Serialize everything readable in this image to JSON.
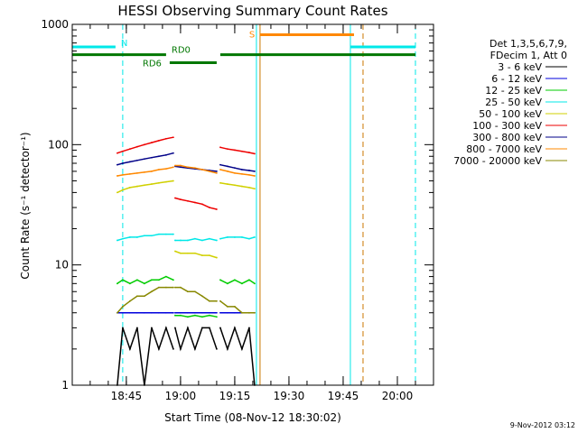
{
  "chart_data": {
    "type": "line",
    "title": "HESSI Observing Summary Count Rates",
    "xlabel": "Start Time (08-Nov-12 18:30:02)",
    "ylabel": "Count Rate (s⁻¹ detector⁻¹)",
    "y_scale": "log",
    "ylim": [
      1,
      1000
    ],
    "xlim": [
      "18:30:02",
      "20:10:00"
    ],
    "x_ticks": [
      "18:45",
      "19:00",
      "19:15",
      "19:30",
      "19:45",
      "20:00"
    ],
    "y_ticks": [
      "1",
      "10",
      "100",
      "1000"
    ],
    "legend_position": "right",
    "legend_header": [
      "Det 1,3,5,6,7,9,",
      "FDecim 1, Att 0"
    ],
    "series": [
      {
        "name": "3 - 6 keV",
        "color": "#000000",
        "segments": [
          {
            "x": [
              "18:42:30",
              "18:44:00",
              "18:46:00",
              "18:48:00",
              "18:50:00",
              "18:52:00",
              "18:54:00",
              "18:56:00",
              "18:58:00"
            ],
            "y": [
              1,
              3,
              2,
              3,
              1,
              3,
              2,
              3,
              2
            ]
          },
          {
            "x": [
              "18:58:30",
              "19:00:00",
              "19:02:00",
              "19:04:00",
              "19:06:00",
              "19:08:00",
              "19:10:00"
            ],
            "y": [
              3,
              2,
              3,
              2,
              3,
              3,
              2
            ]
          },
          {
            "x": [
              "19:11:00",
              "19:13:00",
              "19:15:00",
              "19:17:00",
              "19:19:00",
              "19:20:30"
            ],
            "y": [
              3,
              2,
              3,
              2,
              3,
              1
            ]
          }
        ]
      },
      {
        "name": "6 - 12 keV",
        "color": "#0000dd",
        "segments": [
          {
            "x": [
              "18:42:30",
              "18:44:00",
              "18:46:00",
              "18:48:00",
              "18:50:00",
              "18:52:00",
              "18:54:00",
              "18:56:00",
              "18:58:00"
            ],
            "y": [
              4,
              4,
              4,
              4,
              4,
              4,
              4,
              4,
              4
            ]
          },
          {
            "x": [
              "18:58:30",
              "19:00:00",
              "19:02:00",
              "19:04:00",
              "19:06:00",
              "19:08:00",
              "19:10:00"
            ],
            "y": [
              4,
              4,
              4,
              4,
              4,
              4,
              4
            ]
          },
          {
            "x": [
              "19:11:00",
              "19:13:00",
              "19:15:00",
              "19:17:00",
              "19:19:00",
              "19:20:30"
            ],
            "y": [
              4,
              4,
              4,
              4,
              4,
              4
            ]
          }
        ]
      },
      {
        "name": "12 - 25 keV",
        "color": "#00cc00",
        "segments": [
          {
            "x": [
              "18:42:30",
              "18:44:00",
              "18:46:00",
              "18:48:00",
              "18:50:00",
              "18:52:00",
              "18:54:00",
              "18:56:00",
              "18:58:00"
            ],
            "y": [
              7,
              7.5,
              7,
              7.5,
              7,
              7.5,
              7.5,
              8,
              7.5
            ]
          },
          {
            "x": [
              "18:58:30",
              "19:00:00",
              "19:02:00",
              "19:04:00",
              "19:06:00",
              "19:08:00",
              "19:10:00"
            ],
            "y": [
              3.8,
              3.8,
              3.7,
              3.8,
              3.7,
              3.8,
              3.7
            ]
          },
          {
            "x": [
              "19:11:00",
              "19:13:00",
              "19:15:00",
              "19:17:00",
              "19:19:00",
              "19:20:30"
            ],
            "y": [
              7.5,
              7,
              7.5,
              7,
              7.5,
              7
            ]
          }
        ]
      },
      {
        "name": "25 - 50 keV",
        "color": "#00e8e8",
        "segments": [
          {
            "x": [
              "18:42:30",
              "18:44:00",
              "18:46:00",
              "18:48:00",
              "18:50:00",
              "18:52:00",
              "18:54:00",
              "18:56:00",
              "18:58:00"
            ],
            "y": [
              16,
              16.5,
              17,
              17,
              17.5,
              17.5,
              18,
              18,
              18
            ]
          },
          {
            "x": [
              "18:58:30",
              "19:00:00",
              "19:02:00",
              "19:04:00",
              "19:06:00",
              "19:08:00",
              "19:10:00"
            ],
            "y": [
              16,
              16,
              16,
              16.5,
              16,
              16.5,
              16
            ]
          },
          {
            "x": [
              "19:11:00",
              "19:13:00",
              "19:15:00",
              "19:17:00",
              "19:19:00",
              "19:20:30"
            ],
            "y": [
              16.5,
              17,
              17,
              17,
              16.5,
              17
            ]
          }
        ]
      },
      {
        "name": "50 - 100 keV",
        "color": "#d0d000",
        "segments": [
          {
            "x": [
              "18:42:30",
              "18:44:00",
              "18:46:00",
              "18:48:00",
              "18:50:00",
              "18:52:00",
              "18:54:00",
              "18:56:00",
              "18:58:00"
            ],
            "y": [
              40,
              42,
              44,
              45,
              46,
              47,
              48,
              49,
              50
            ]
          },
          {
            "x": [
              "18:58:30",
              "19:00:00",
              "19:02:00",
              "19:04:00",
              "19:06:00",
              "19:08:00",
              "19:10:00"
            ],
            "y": [
              13,
              12.5,
              12.5,
              12.5,
              12,
              12,
              11.5
            ]
          },
          {
            "x": [
              "19:11:00",
              "19:13:00",
              "19:15:00",
              "19:17:00",
              "19:19:00",
              "19:20:30"
            ],
            "y": [
              48,
              47,
              46,
              45,
              44,
              43
            ]
          }
        ]
      },
      {
        "name": "100 - 300 keV",
        "color": "#ee0000",
        "segments": [
          {
            "x": [
              "18:42:30",
              "18:44:00",
              "18:46:00",
              "18:48:00",
              "18:50:00",
              "18:52:00",
              "18:54:00",
              "18:56:00",
              "18:58:00"
            ],
            "y": [
              85,
              88,
              92,
              96,
              100,
              104,
              108,
              112,
              115
            ]
          },
          {
            "x": [
              "18:58:30",
              "19:00:00",
              "19:02:00",
              "19:04:00",
              "19:06:00",
              "19:08:00",
              "19:10:00"
            ],
            "y": [
              36,
              35,
              34,
              33,
              32,
              30,
              29
            ]
          },
          {
            "x": [
              "19:11:00",
              "19:13:00",
              "19:15:00",
              "19:17:00",
              "19:19:00",
              "19:20:30"
            ],
            "y": [
              95,
              92,
              90,
              88,
              86,
              84
            ]
          }
        ]
      },
      {
        "name": "300 - 800 keV",
        "color": "#000088",
        "segments": [
          {
            "x": [
              "18:42:30",
              "18:44:00",
              "18:46:00",
              "18:48:00",
              "18:50:00",
              "18:52:00",
              "18:54:00",
              "18:56:00",
              "18:58:00"
            ],
            "y": [
              68,
              70,
              72,
              74,
              76,
              78,
              80,
              82,
              85
            ]
          },
          {
            "x": [
              "18:58:30",
              "19:00:00",
              "19:02:00",
              "19:04:00",
              "19:06:00",
              "19:08:00",
              "19:10:00"
            ],
            "y": [
              66,
              65,
              64,
              63,
              62,
              61,
              60
            ]
          },
          {
            "x": [
              "19:11:00",
              "19:13:00",
              "19:15:00",
              "19:17:00",
              "19:19:00",
              "19:20:30"
            ],
            "y": [
              68,
              66,
              64,
              62,
              61,
              60
            ]
          }
        ]
      },
      {
        "name": "800 - 7000 keV",
        "color": "#ff8800",
        "segments": [
          {
            "x": [
              "18:42:30",
              "18:44:00",
              "18:46:00",
              "18:48:00",
              "18:50:00",
              "18:52:00",
              "18:54:00",
              "18:56:00",
              "18:58:00"
            ],
            "y": [
              55,
              56,
              57,
              58,
              59,
              60,
              62,
              63,
              65
            ]
          },
          {
            "x": [
              "18:58:30",
              "19:00:00",
              "19:02:00",
              "19:04:00",
              "19:06:00",
              "19:08:00",
              "19:10:00"
            ],
            "y": [
              67,
              67,
              65,
              64,
              62,
              60,
              58
            ]
          },
          {
            "x": [
              "19:11:00",
              "19:13:00",
              "19:15:00",
              "19:17:00",
              "19:19:00",
              "19:20:30"
            ],
            "y": [
              62,
              60,
              58,
              57,
              56,
              55
            ]
          }
        ]
      },
      {
        "name": "7000 - 20000 keV",
        "color": "#888800",
        "segments": [
          {
            "x": [
              "18:42:30",
              "18:44:00",
              "18:46:00",
              "18:48:00",
              "18:50:00",
              "18:52:00",
              "18:54:00",
              "18:56:00",
              "18:58:00"
            ],
            "y": [
              4,
              4.5,
              5,
              5.5,
              5.5,
              6,
              6.5,
              6.5,
              6.5
            ]
          },
          {
            "x": [
              "18:58:30",
              "19:00:00",
              "19:02:00",
              "19:04:00",
              "19:06:00",
              "19:08:00",
              "19:10:00"
            ],
            "y": [
              6.5,
              6.5,
              6,
              6,
              5.5,
              5,
              5
            ]
          },
          {
            "x": [
              "19:11:00",
              "19:13:00",
              "19:15:00",
              "19:17:00",
              "19:19:00",
              "19:20:30"
            ],
            "y": [
              5,
              4.5,
              4.5,
              4,
              4,
              4
            ]
          }
        ]
      }
    ],
    "flag_bars": [
      {
        "label": "N",
        "color": "#00e8e8",
        "y": 650,
        "x_ranges": [
          [
            "18:30:02",
            "18:42:00"
          ],
          [
            "19:47:00",
            "20:05:00"
          ]
        ]
      },
      {
        "label": "S",
        "color": "#ff8800",
        "y": 820,
        "x_ranges": [
          [
            "19:22:00",
            "19:48:00"
          ]
        ]
      },
      {
        "label": "RD0",
        "color": "#007700",
        "y": 560,
        "x_ranges": [
          [
            "18:30:02",
            "18:56:00"
          ],
          [
            "19:11:00",
            "20:05:00"
          ]
        ]
      },
      {
        "label": "RD6",
        "color": "#007700",
        "y": 480,
        "x_ranges": [
          [
            "18:57:00",
            "19:10:00"
          ]
        ]
      }
    ],
    "vertical_lines": [
      {
        "x": "18:44:00",
        "color": "#00e8e8",
        "style": "dashed"
      },
      {
        "x": "19:21:00",
        "color": "#00e8e8",
        "style": "solid"
      },
      {
        "x": "19:22:00",
        "color": "#cc7700",
        "style": "solid"
      },
      {
        "x": "19:47:00",
        "color": "#00e8e8",
        "style": "solid"
      },
      {
        "x": "19:50:30",
        "color": "#cc7700",
        "style": "dashed"
      },
      {
        "x": "20:05:00",
        "color": "#00e8e8",
        "style": "dashed"
      }
    ]
  },
  "timestamp": "9-Nov-2012 03:12"
}
